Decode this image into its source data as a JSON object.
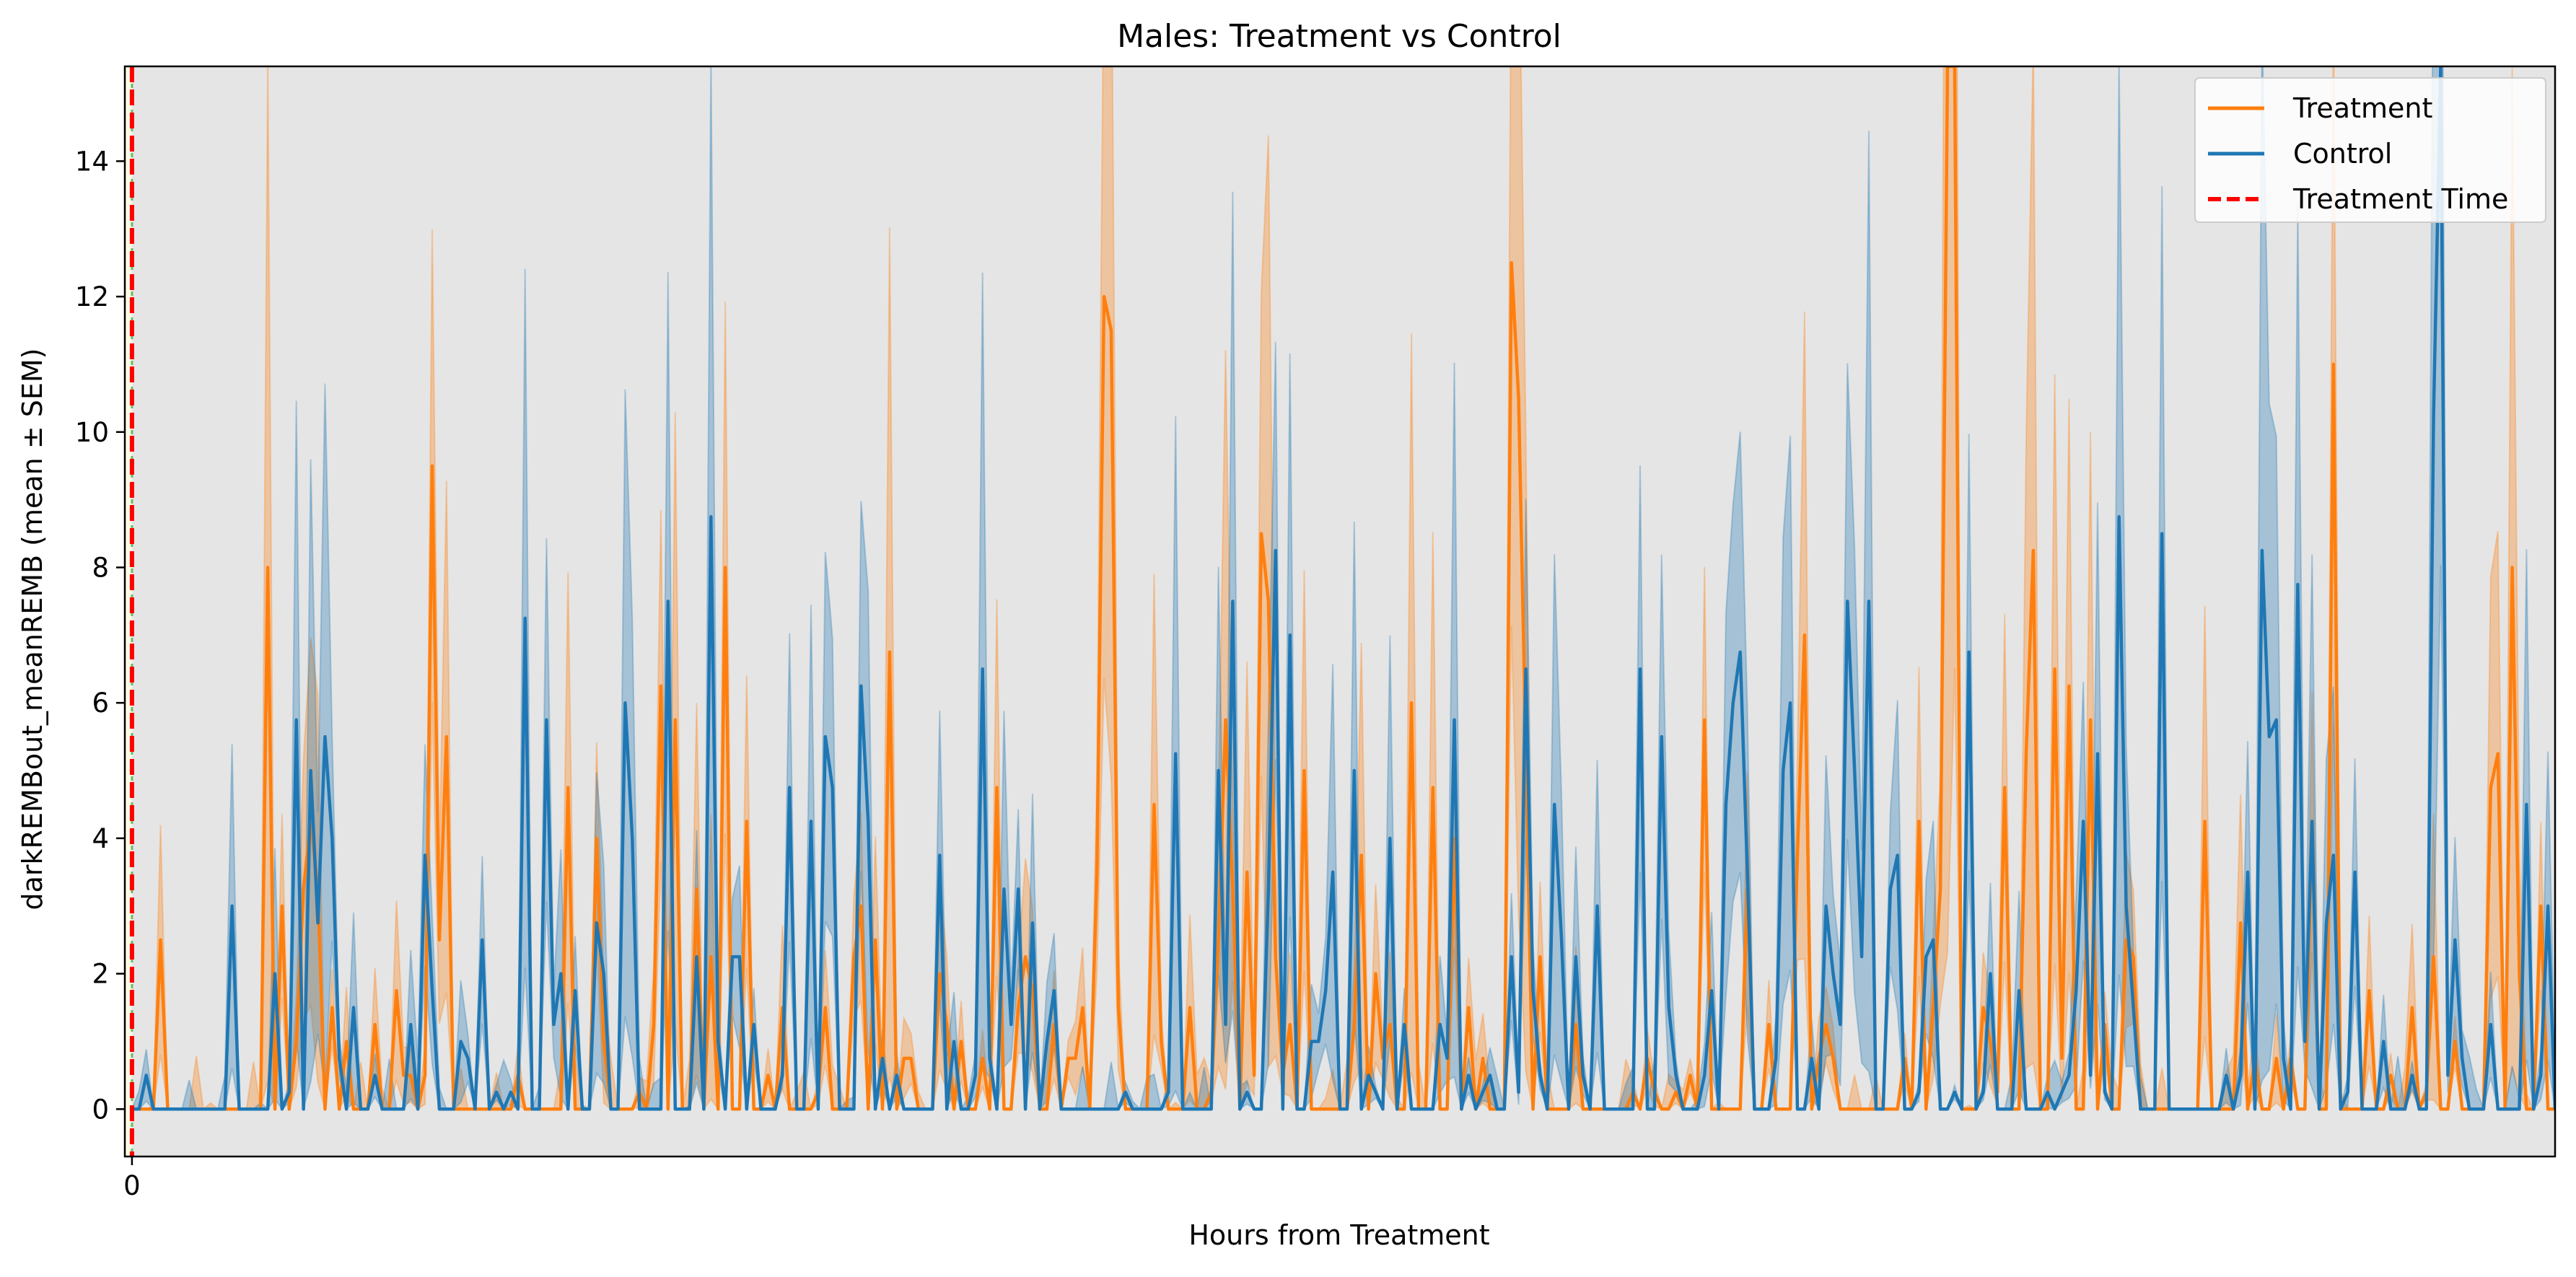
{
  "chart_data": {
    "type": "line",
    "title": "Males: Treatment vs Control",
    "xlabel": "Hours from Treatment",
    "ylabel": "darkREMBout_meanREMB (mean ± SEM)",
    "xlim": [
      -1,
      339
    ],
    "ylim": [
      -0.7,
      15.4
    ],
    "x_ticks": [
      0
    ],
    "y_ticks": [
      0,
      2,
      4,
      6,
      8,
      10,
      12,
      14
    ],
    "grid": false,
    "legend_position": "top-right",
    "background_color": "#e5e5e5",
    "annotation": {
      "label": "Treatment Time",
      "x": 0,
      "color": "#ff0000",
      "style": "dashed"
    },
    "series": [
      {
        "name": "Treatment",
        "color": "#ff7f0e",
        "pattern_seed": 7,
        "length": 340,
        "sparsity": 0.55,
        "scale": 1.7,
        "peaks": [
          [
            19,
            8.0
          ],
          [
            83,
            8.0
          ],
          [
            136,
            12.0
          ],
          [
            137,
            11.5
          ],
          [
            143,
            4.5
          ],
          [
            158,
            8.5
          ],
          [
            193,
            12.5
          ],
          [
            194,
            10.5
          ],
          [
            254,
            15.4
          ],
          [
            255,
            15.4
          ],
          [
            308,
            11.0
          ],
          [
            333,
            8.0
          ]
        ]
      },
      {
        "name": "Control",
        "color": "#1f77b4",
        "pattern_seed": 13,
        "length": 340,
        "sparsity": 0.5,
        "scale": 1.6,
        "peaks": [
          [
            27,
            5.5
          ],
          [
            154,
            7.5
          ],
          [
            160,
            8.25
          ],
          [
            195,
            6.5
          ],
          [
            211,
            6.5
          ],
          [
            240,
            7.5
          ],
          [
            298,
            8.25
          ],
          [
            322,
            10.25
          ],
          [
            323,
            15.4
          ]
        ]
      }
    ],
    "band_alpha": 0.32
  }
}
